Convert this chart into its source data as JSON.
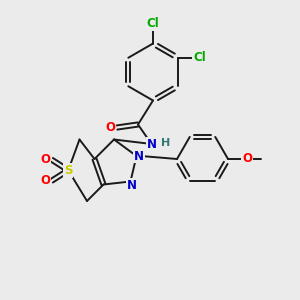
{
  "background_color": "#ebebeb",
  "bond_color": "#1a1a1a",
  "atom_colors": {
    "Cl": "#00aa00",
    "O": "#ff0000",
    "N": "#0000cc",
    "S": "#cccc00",
    "H": "#337777",
    "C": "#1a1a1a"
  },
  "figsize": [
    3.0,
    3.0
  ],
  "dpi": 100
}
